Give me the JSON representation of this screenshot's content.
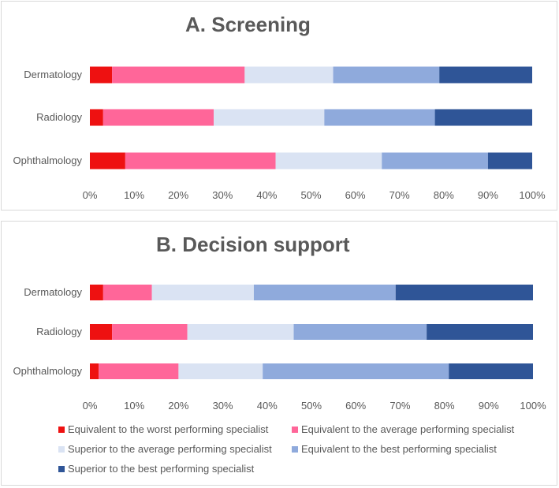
{
  "colors": [
    "#ee1111",
    "#ff6699",
    "#dae3f3",
    "#8faadc",
    "#2f5597"
  ],
  "legend": [
    "Equivalent to the worst performing specialist",
    "Equivalent to the average performing specialist",
    "Superior to the average performing specialist",
    "Equivalent to the best performing specialist",
    "Superior to the best performing specialist"
  ],
  "chart_data": [
    {
      "type": "bar",
      "orientation": "horizontal-stacked-100",
      "title": "A. Screening",
      "categories": [
        "Dermatology",
        "Radiology",
        "Ophthalmology"
      ],
      "xticks": [
        "0%",
        "10%",
        "20%",
        "30%",
        "40%",
        "50%",
        "60%",
        "70%",
        "80%",
        "90%",
        "100%"
      ],
      "xlim": [
        0,
        100
      ],
      "series": [
        {
          "name": "Equivalent to the worst performing specialist",
          "values": [
            5,
            3,
            8
          ]
        },
        {
          "name": "Equivalent to the average performing specialist",
          "values": [
            30,
            25,
            34
          ]
        },
        {
          "name": "Superior to the average performing specialist",
          "values": [
            20,
            25,
            24
          ]
        },
        {
          "name": "Equivalent to the best performing specialist",
          "values": [
            24,
            25,
            24
          ]
        },
        {
          "name": "Superior to the best performing specialist",
          "values": [
            21,
            22,
            10
          ]
        }
      ]
    },
    {
      "type": "bar",
      "orientation": "horizontal-stacked-100",
      "title": "B. Decision support",
      "categories": [
        "Dermatology",
        "Radiology",
        "Ophthalmology"
      ],
      "xticks": [
        "0%",
        "10%",
        "20%",
        "30%",
        "40%",
        "50%",
        "60%",
        "70%",
        "80%",
        "90%",
        "100%"
      ],
      "xlim": [
        0,
        100
      ],
      "series": [
        {
          "name": "Equivalent to the worst performing specialist",
          "values": [
            3,
            5,
            2
          ]
        },
        {
          "name": "Equivalent to the average performing specialist",
          "values": [
            11,
            17,
            18
          ]
        },
        {
          "name": "Superior to the average performing specialist",
          "values": [
            23,
            24,
            19
          ]
        },
        {
          "name": "Equivalent to the best performing specialist",
          "values": [
            32,
            30,
            42
          ]
        },
        {
          "name": "Superior to the best performing specialist",
          "values": [
            31,
            24,
            19
          ]
        }
      ]
    }
  ]
}
